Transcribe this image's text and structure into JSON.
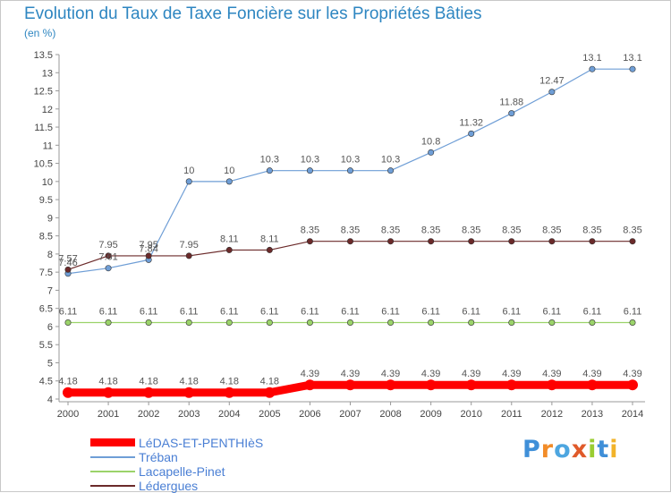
{
  "chart_data": {
    "type": "line",
    "title": "Evolution du Taux de Taxe Foncière sur les Propriétés Bâties",
    "subtitle": "(en %)",
    "x": [
      "2000",
      "2001",
      "2002",
      "2003",
      "2004",
      "2005",
      "2006",
      "2007",
      "2008",
      "2009",
      "2010",
      "2011",
      "2012",
      "2013",
      "2014"
    ],
    "yticks": [
      "4",
      "4.5",
      "5",
      "5.5",
      "6",
      "6.5",
      "7",
      "7.5",
      "8",
      "8.5",
      "9",
      "9.5",
      "10",
      "10.5",
      "11",
      "11.5",
      "12",
      "12.5",
      "13",
      "13.5"
    ],
    "ylim": [
      4,
      13.5
    ],
    "grid": false,
    "series": [
      {
        "name": "LéDAS-ET-PENTHIèS",
        "color": "#ff0000",
        "values": [
          4.18,
          4.18,
          4.18,
          4.18,
          4.18,
          4.18,
          4.39,
          4.39,
          4.39,
          4.39,
          4.39,
          4.39,
          4.39,
          4.39,
          4.39
        ],
        "labels": [
          "4.18",
          "4.18",
          "4.18",
          "4.18",
          "4.18",
          "4.18",
          "4.39",
          "4.39",
          "4.39",
          "4.39",
          "4.39",
          "4.39",
          "4.39",
          "4.39",
          "4.39"
        ]
      },
      {
        "name": "Tréban",
        "color": "#6f9ed6",
        "values": [
          7.46,
          7.61,
          7.84,
          10,
          10,
          10.3,
          10.3,
          10.3,
          10.3,
          10.8,
          11.32,
          11.88,
          12.47,
          13.1,
          13.1
        ],
        "labels": [
          "7.46",
          "7.61",
          "7.84",
          "10",
          "10",
          "10.3",
          "10.3",
          "10.3",
          "10.3",
          "10.8",
          "11.32",
          "11.88",
          "12.47",
          "13.1",
          "13.1"
        ]
      },
      {
        "name": "Lacapelle-Pinet",
        "color": "#9bd36a",
        "values": [
          6.11,
          6.11,
          6.11,
          6.11,
          6.11,
          6.11,
          6.11,
          6.11,
          6.11,
          6.11,
          6.11,
          6.11,
          6.11,
          6.11,
          6.11
        ],
        "labels": [
          "6.11",
          "6.11",
          "6.11",
          "6.11",
          "6.11",
          "6.11",
          "6.11",
          "6.11",
          "6.11",
          "6.11",
          "6.11",
          "6.11",
          "6.11",
          "6.11",
          "6.11"
        ]
      },
      {
        "name": "Lédergues",
        "color": "#6b2a2a",
        "values": [
          7.57,
          7.95,
          7.95,
          7.95,
          8.11,
          8.11,
          8.35,
          8.35,
          8.35,
          8.35,
          8.35,
          8.35,
          8.35,
          8.35,
          8.35
        ],
        "labels": [
          "7.57",
          "7.95",
          "7.95",
          "7.95",
          "8.11",
          "8.11",
          "8.35",
          "8.35",
          "8.35",
          "8.35",
          "8.35",
          "8.35",
          "8.35",
          "8.35",
          "8.35"
        ]
      }
    ]
  },
  "logo": {
    "text": "Proxiti",
    "letters": [
      "P",
      "r",
      "o",
      "x",
      "i",
      "t",
      "i"
    ],
    "colors": [
      "#3f8fd8",
      "#f28c28",
      "#4da6e0",
      "#e05a2a",
      "#9acd32",
      "#3f8fd8",
      "#f2b32a"
    ]
  }
}
